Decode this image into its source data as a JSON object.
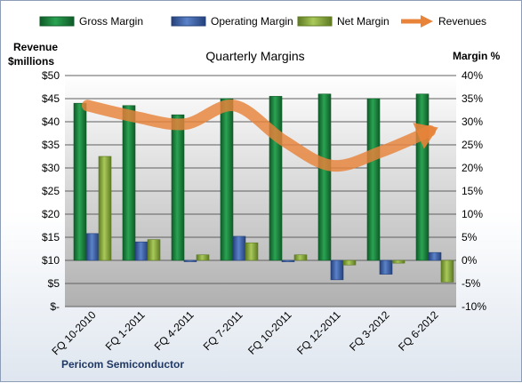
{
  "chart_data": {
    "type": "bar",
    "title": "Quarterly Margins",
    "company": "Pericom Semiconductor",
    "y_left_label_line1": "Revenue",
    "y_left_label_line2": "$millions",
    "y_right_label": "Margin %",
    "categories": [
      "FQ 10-2010",
      "FQ 1-2011",
      "FQ 4-2011",
      "FQ 7-2011",
      "FQ 10-2011",
      "FQ 12-2011",
      "FQ 3-2012",
      "FQ 6-2012"
    ],
    "y_left_ticks": [
      "$-",
      "$5",
      "$10",
      "$15",
      "$20",
      "$25",
      "$30",
      "$35",
      "$40",
      "$45",
      "$50"
    ],
    "y_right_ticks": [
      "-10%",
      "-5%",
      "0%",
      "5%",
      "10%",
      "15%",
      "20%",
      "25%",
      "30%",
      "35%",
      "40%"
    ],
    "ylim_left": [
      0,
      50
    ],
    "ylim_right": [
      -10,
      40
    ],
    "grid": true,
    "legend_position": "top",
    "series": [
      {
        "name": "Gross Margin",
        "axis": "right",
        "type": "bar",
        "color": "#1e7a3c",
        "values": [
          34.0,
          33.5,
          31.5,
          35.0,
          35.5,
          36.0,
          35.0,
          36.0
        ]
      },
      {
        "name": "Operating Margin",
        "axis": "right",
        "type": "bar",
        "color": "#3a5fa8",
        "values": [
          5.8,
          4.0,
          -0.2,
          5.2,
          -0.3,
          -4.2,
          -3.0,
          1.7
        ]
      },
      {
        "name": "Net Margin",
        "axis": "right",
        "type": "bar",
        "color": "#8aa93c",
        "values": [
          22.5,
          4.5,
          1.2,
          3.8,
          1.2,
          -1.0,
          -0.6,
          -4.7
        ]
      },
      {
        "name": "Revenues",
        "axis": "left",
        "type": "line",
        "color": "#e8833a",
        "values": [
          43.5,
          41.0,
          39.5,
          43.5,
          36.0,
          30.5,
          33.5,
          38.0
        ]
      }
    ]
  },
  "colors": {
    "plot_top": "#ffffff",
    "plot_bottom": "#b3b3b3",
    "gridline": "#5f5f5f"
  }
}
